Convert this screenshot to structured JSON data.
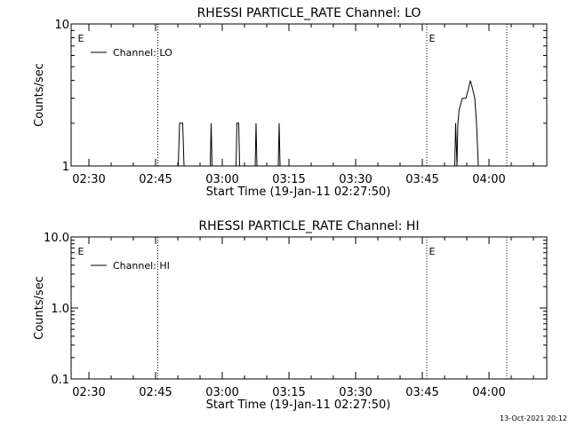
{
  "footer": {
    "timestamp": "13-Oct-2021 20:12"
  },
  "chart_data": [
    {
      "type": "line",
      "title": "RHESSI PARTICLE_RATE Channel: LO",
      "xlabel": "Start Time (19-Jan-11 02:27:50)",
      "ylabel": "Counts/sec",
      "yscale": "log",
      "ylim": [
        1,
        10
      ],
      "y_ticks": [
        {
          "v": 1,
          "label": "1"
        },
        {
          "v": 10,
          "label": "10"
        }
      ],
      "xlim_minutes": [
        -4,
        103
      ],
      "x_ticks": [
        {
          "m": 0,
          "label": "02:30"
        },
        {
          "m": 15,
          "label": "02:45"
        },
        {
          "m": 30,
          "label": "03:00"
        },
        {
          "m": 45,
          "label": "03:15"
        },
        {
          "m": 60,
          "label": "03:30"
        },
        {
          "m": 75,
          "label": "03:45"
        },
        {
          "m": 90,
          "label": "04:00"
        }
      ],
      "vlines_minutes": [
        15.5,
        76.0,
        94.0
      ],
      "markers": [
        {
          "m": -1.8,
          "label": "E"
        },
        {
          "m": 77.2,
          "label": "E"
        }
      ],
      "legend": {
        "position": "top-left",
        "entries": [
          "Channel: LO"
        ]
      },
      "series": [
        {
          "name": "Channel: LO",
          "points": [
            [
              20.1,
              1
            ],
            [
              20.4,
              2
            ],
            [
              21.1,
              2
            ],
            [
              21.4,
              1
            ],
            [
              27.3,
              1
            ],
            [
              27.5,
              2
            ],
            [
              27.7,
              1
            ],
            [
              33.1,
              1
            ],
            [
              33.3,
              2
            ],
            [
              33.7,
              2
            ],
            [
              33.9,
              1
            ],
            [
              37.4,
              1
            ],
            [
              37.6,
              2
            ],
            [
              37.8,
              1
            ],
            [
              42.6,
              1
            ],
            [
              42.8,
              2
            ],
            [
              43.0,
              1
            ],
            [
              82.3,
              1
            ],
            [
              82.5,
              2
            ],
            [
              82.8,
              1
            ],
            [
              83.0,
              2
            ],
            [
              83.3,
              2.5
            ],
            [
              84.0,
              3
            ],
            [
              84.8,
              3
            ],
            [
              85.4,
              3.5
            ],
            [
              85.8,
              4
            ],
            [
              86.3,
              3.5
            ],
            [
              86.8,
              3
            ],
            [
              87.2,
              2
            ],
            [
              87.6,
              1
            ]
          ]
        }
      ]
    },
    {
      "type": "line",
      "title": "RHESSI PARTICLE_RATE Channel: HI",
      "xlabel": "Start Time (19-Jan-11 02:27:50)",
      "ylabel": "Counts/sec",
      "yscale": "log",
      "ylim": [
        0.1,
        10
      ],
      "y_ticks": [
        {
          "v": 0.1,
          "label": "0.1"
        },
        {
          "v": 1,
          "label": "1.0"
        },
        {
          "v": 10,
          "label": "10.0"
        }
      ],
      "xlim_minutes": [
        -4,
        103
      ],
      "x_ticks": [
        {
          "m": 0,
          "label": "02:30"
        },
        {
          "m": 15,
          "label": "02:45"
        },
        {
          "m": 30,
          "label": "03:00"
        },
        {
          "m": 45,
          "label": "03:15"
        },
        {
          "m": 60,
          "label": "03:30"
        },
        {
          "m": 75,
          "label": "03:45"
        },
        {
          "m": 90,
          "label": "04:00"
        }
      ],
      "vlines_minutes": [
        15.5,
        76.0,
        94.0
      ],
      "markers": [
        {
          "m": -1.8,
          "label": "E"
        },
        {
          "m": 77.2,
          "label": "E"
        }
      ],
      "legend": {
        "position": "top-left",
        "entries": [
          "Channel: HI"
        ]
      },
      "series": [
        {
          "name": "Channel: HI",
          "points": []
        }
      ]
    }
  ]
}
